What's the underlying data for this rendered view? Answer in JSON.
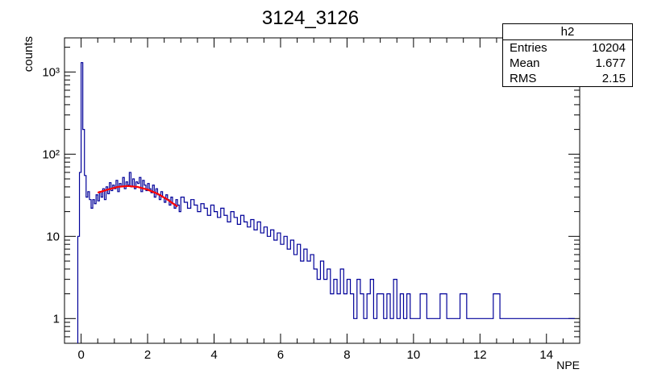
{
  "chart_data": {
    "type": "histogram",
    "title": "3124_3126",
    "xlabel": "NPE",
    "ylabel": "counts",
    "xlim": [
      -0.5,
      15
    ],
    "ylim": [
      0.5,
      2600
    ],
    "yscale": "log",
    "grid": false,
    "x_ticks": [
      "0",
      "2",
      "4",
      "6",
      "8",
      "10",
      "12",
      "14"
    ],
    "x_tick_values": [
      0,
      2,
      4,
      6,
      8,
      10,
      12,
      14
    ],
    "y_ticks": [
      "1",
      "10",
      "10²",
      "10³"
    ],
    "y_tick_values": [
      1,
      10,
      100,
      1000
    ],
    "series": [
      {
        "color": "#000099",
        "bin_width": 0.05,
        "bins": [
          [
            -0.1,
            10
          ],
          [
            -0.05,
            60
          ],
          [
            0.0,
            1300
          ],
          [
            0.05,
            200
          ],
          [
            0.1,
            55
          ],
          [
            0.15,
            30
          ],
          [
            0.2,
            35
          ],
          [
            0.25,
            28
          ],
          [
            0.3,
            22
          ],
          [
            0.35,
            28
          ],
          [
            0.4,
            25
          ],
          [
            0.45,
            32
          ],
          [
            0.5,
            27
          ],
          [
            0.55,
            35
          ],
          [
            0.6,
            30
          ],
          [
            0.65,
            38
          ],
          [
            0.7,
            28
          ],
          [
            0.75,
            40
          ],
          [
            0.8,
            33
          ],
          [
            0.85,
            45
          ],
          [
            0.9,
            36
          ],
          [
            0.95,
            42
          ],
          [
            1.0,
            38
          ],
          [
            1.05,
            48
          ],
          [
            1.1,
            35
          ],
          [
            1.15,
            44
          ],
          [
            1.2,
            40
          ],
          [
            1.25,
            52
          ],
          [
            1.3,
            38
          ],
          [
            1.35,
            46
          ],
          [
            1.4,
            42
          ],
          [
            1.45,
            60
          ],
          [
            1.5,
            40
          ],
          [
            1.55,
            50
          ],
          [
            1.6,
            38
          ],
          [
            1.65,
            46
          ],
          [
            1.7,
            44
          ],
          [
            1.75,
            52
          ],
          [
            1.8,
            35
          ],
          [
            1.85,
            48
          ],
          [
            1.9,
            42
          ],
          [
            1.95,
            36
          ],
          [
            2.0,
            44
          ],
          [
            2.05,
            38
          ],
          [
            2.1,
            34
          ],
          [
            2.15,
            42
          ],
          [
            2.2,
            30
          ],
          [
            2.25,
            38
          ],
          [
            2.3,
            32
          ],
          [
            2.35,
            28
          ],
          [
            2.4,
            35
          ],
          [
            2.45,
            30
          ],
          [
            2.5,
            26
          ],
          [
            2.55,
            32
          ],
          [
            2.6,
            28
          ],
          [
            2.65,
            24
          ],
          [
            2.7,
            30
          ],
          [
            2.75,
            25
          ],
          [
            2.8,
            22
          ],
          [
            2.85,
            28
          ],
          [
            2.9,
            24
          ],
          [
            2.95,
            20
          ],
          [
            3.0,
            30
          ],
          [
            3.1,
            26
          ],
          [
            3.2,
            22
          ],
          [
            3.3,
            28
          ],
          [
            3.4,
            24
          ],
          [
            3.5,
            20
          ],
          [
            3.6,
            25
          ],
          [
            3.7,
            22
          ],
          [
            3.8,
            18
          ],
          [
            3.9,
            24
          ],
          [
            4.0,
            20
          ],
          [
            4.1,
            17
          ],
          [
            4.2,
            22
          ],
          [
            4.3,
            18
          ],
          [
            4.4,
            15
          ],
          [
            4.5,
            20
          ],
          [
            4.6,
            17
          ],
          [
            4.7,
            14
          ],
          [
            4.8,
            18
          ],
          [
            4.9,
            15
          ],
          [
            5.0,
            13
          ],
          [
            5.1,
            16
          ],
          [
            5.2,
            12
          ],
          [
            5.3,
            15
          ],
          [
            5.4,
            11
          ],
          [
            5.5,
            13
          ],
          [
            5.6,
            10
          ],
          [
            5.7,
            12
          ],
          [
            5.8,
            9
          ],
          [
            5.9,
            11
          ],
          [
            6.0,
            8
          ],
          [
            6.1,
            10
          ],
          [
            6.2,
            7
          ],
          [
            6.3,
            9
          ],
          [
            6.4,
            6
          ],
          [
            6.5,
            8
          ],
          [
            6.6,
            5
          ],
          [
            6.7,
            7
          ],
          [
            6.8,
            5
          ],
          [
            6.9,
            6
          ],
          [
            7.0,
            4
          ],
          [
            7.1,
            3
          ],
          [
            7.2,
            5
          ],
          [
            7.3,
            3
          ],
          [
            7.4,
            4
          ],
          [
            7.5,
            2
          ],
          [
            7.6,
            3
          ],
          [
            7.7,
            2
          ],
          [
            7.8,
            4
          ],
          [
            7.9,
            2
          ],
          [
            8.0,
            3
          ],
          [
            8.1,
            2
          ],
          [
            8.2,
            1
          ],
          [
            8.3,
            3
          ],
          [
            8.4,
            2
          ],
          [
            8.5,
            1
          ],
          [
            8.6,
            2
          ],
          [
            8.7,
            3
          ],
          [
            8.8,
            1
          ],
          [
            8.9,
            2
          ],
          [
            9.0,
            2
          ],
          [
            9.1,
            1
          ],
          [
            9.2,
            2
          ],
          [
            9.3,
            1
          ],
          [
            9.4,
            3
          ],
          [
            9.5,
            1
          ],
          [
            9.6,
            2
          ],
          [
            9.7,
            1
          ],
          [
            9.8,
            2
          ],
          [
            9.9,
            1
          ],
          [
            10.0,
            1
          ],
          [
            10.2,
            2
          ],
          [
            10.4,
            1
          ],
          [
            10.6,
            1
          ],
          [
            10.8,
            2
          ],
          [
            11.0,
            1
          ],
          [
            11.2,
            1
          ],
          [
            11.4,
            2
          ],
          [
            11.6,
            1
          ],
          [
            11.8,
            1
          ],
          [
            12.0,
            1
          ],
          [
            12.2,
            1
          ],
          [
            12.4,
            2
          ],
          [
            12.6,
            1
          ],
          [
            12.8,
            1
          ],
          [
            13.0,
            1
          ],
          [
            13.2,
            1
          ],
          [
            13.4,
            1
          ],
          [
            13.6,
            1
          ],
          [
            13.8,
            1
          ],
          [
            14.0,
            1
          ],
          [
            14.2,
            1
          ],
          [
            14.4,
            1
          ],
          [
            14.6,
            1
          ],
          [
            14.8,
            1
          ]
        ]
      },
      {
        "type": "fit",
        "color": "#ff0000",
        "points": [
          [
            0.5,
            34
          ],
          [
            0.8,
            37
          ],
          [
            1.1,
            40
          ],
          [
            1.4,
            41
          ],
          [
            1.7,
            40
          ],
          [
            2.0,
            37
          ],
          [
            2.3,
            33
          ],
          [
            2.6,
            28
          ],
          [
            2.9,
            23
          ]
        ]
      }
    ]
  },
  "stats": {
    "title": "h2",
    "rows": [
      {
        "label": "Entries",
        "value": "10204"
      },
      {
        "label": "Mean",
        "value": "1.677"
      },
      {
        "label": "RMS",
        "value": "2.15"
      }
    ]
  }
}
